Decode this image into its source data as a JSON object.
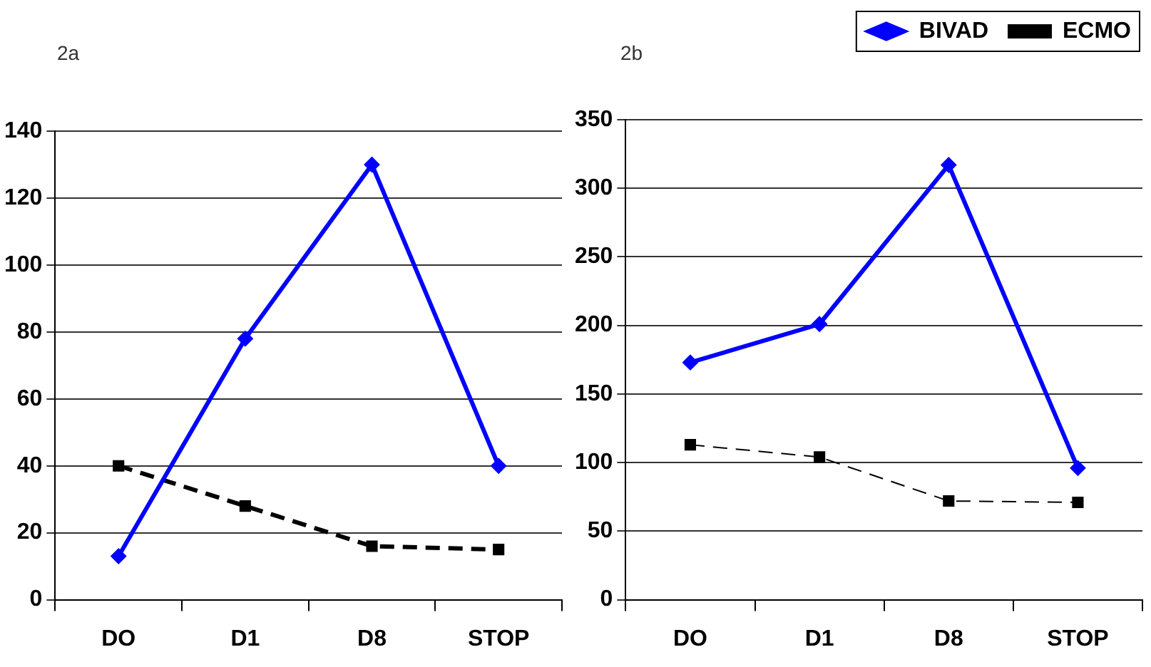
{
  "chart_data": [
    {
      "type": "line",
      "title": "2a",
      "categories": [
        "DO",
        "D1",
        "D8",
        "STOP"
      ],
      "ylim": [
        0,
        140
      ],
      "yticks": [
        0,
        20,
        40,
        60,
        80,
        100,
        120,
        140
      ],
      "grid": "y",
      "legend": false,
      "series": [
        {
          "color": "#0000ff",
          "values": [
            13,
            78,
            130,
            40
          ],
          "marker": "diamond",
          "line_style": "solid"
        },
        {
          "color": "#000000",
          "values": [
            40,
            28,
            16,
            15
          ],
          "marker": "square",
          "line_style": "dashed"
        }
      ]
    },
    {
      "type": "line",
      "title": "2b",
      "categories": [
        "DO",
        "D1",
        "D8",
        "STOP"
      ],
      "ylim": [
        0,
        350
      ],
      "yticks": [
        0,
        50,
        100,
        150,
        200,
        250,
        300,
        350
      ],
      "grid": "y",
      "legend": "top right",
      "series": [
        {
          "name": "BIVAD",
          "color": "#0000ff",
          "values": [
            173,
            201,
            317,
            96
          ],
          "marker": "diamond",
          "line_style": "solid"
        },
        {
          "name": "ECMO",
          "color": "#000000",
          "values": [
            113,
            104,
            72,
            71
          ],
          "marker": "square",
          "line_style": "dashed"
        }
      ]
    }
  ]
}
